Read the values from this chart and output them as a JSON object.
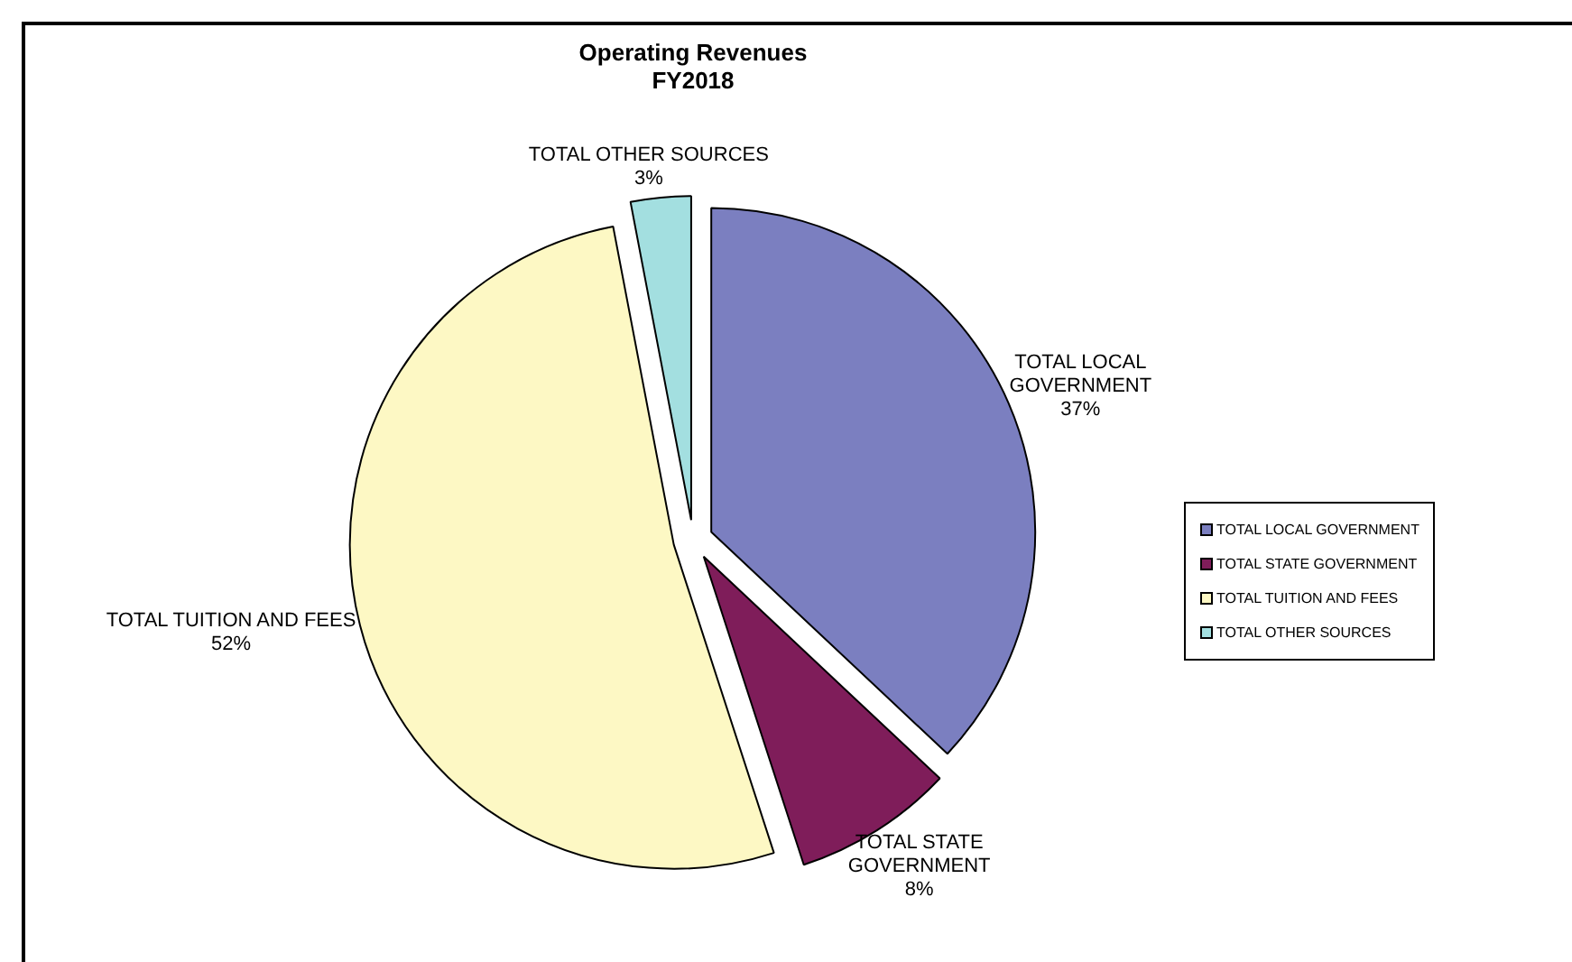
{
  "chart_data": {
    "type": "pie",
    "title": "Operating Revenues\nFY2018",
    "categories": [
      "TOTAL LOCAL GOVERNMENT",
      "TOTAL STATE GOVERNMENT",
      "TOTAL TUITION AND FEES",
      "TOTAL OTHER SOURCES"
    ],
    "values": [
      37,
      8,
      52,
      3
    ],
    "value_labels": [
      "37%",
      "8%",
      "52%",
      "3%"
    ],
    "colors": [
      "#7b7fc0",
      "#7f1d5a",
      "#fdf8c4",
      "#a3dfe0"
    ],
    "legend": "right"
  }
}
